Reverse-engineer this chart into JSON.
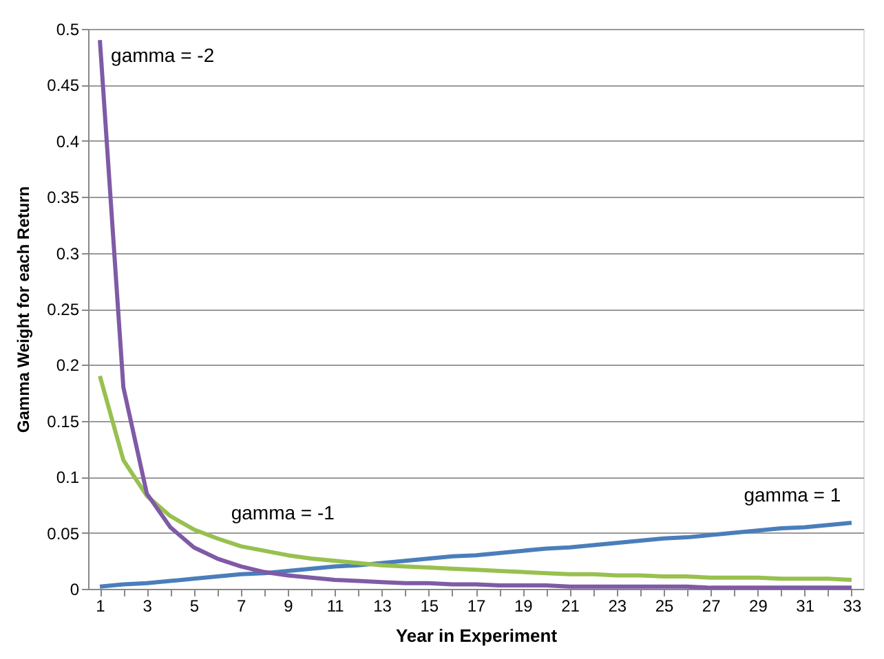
{
  "chart_data": {
    "type": "line",
    "xlabel": "Year in Experiment",
    "ylabel": "Gamma Weight for each Return",
    "x": [
      1,
      2,
      3,
      4,
      5,
      6,
      7,
      8,
      9,
      10,
      11,
      12,
      13,
      14,
      15,
      16,
      17,
      18,
      19,
      20,
      21,
      22,
      23,
      24,
      25,
      26,
      27,
      28,
      29,
      30,
      31,
      32,
      33
    ],
    "series": [
      {
        "name": "gamma = 1",
        "color": "#4a7ebb",
        "values": [
          0.002,
          0.004,
          0.005,
          0.007,
          0.009,
          0.011,
          0.013,
          0.014,
          0.016,
          0.018,
          0.02,
          0.021,
          0.023,
          0.025,
          0.027,
          0.029,
          0.03,
          0.032,
          0.034,
          0.036,
          0.037,
          0.039,
          0.041,
          0.043,
          0.045,
          0.046,
          0.048,
          0.05,
          0.052,
          0.054,
          0.055,
          0.057,
          0.059
        ]
      },
      {
        "name": "gamma = -1",
        "color": "#98c04f",
        "values": [
          0.19,
          0.115,
          0.083,
          0.065,
          0.053,
          0.045,
          0.038,
          0.034,
          0.03,
          0.027,
          0.025,
          0.023,
          0.021,
          0.02,
          0.019,
          0.018,
          0.017,
          0.016,
          0.015,
          0.014,
          0.013,
          0.013,
          0.012,
          0.012,
          0.011,
          0.011,
          0.01,
          0.01,
          0.01,
          0.009,
          0.009,
          0.009,
          0.008
        ]
      },
      {
        "name": "gamma = -2",
        "color": "#7f5aa6",
        "values": [
          0.49,
          0.18,
          0.085,
          0.055,
          0.037,
          0.027,
          0.02,
          0.015,
          0.012,
          0.01,
          0.008,
          0.007,
          0.006,
          0.005,
          0.005,
          0.004,
          0.004,
          0.003,
          0.003,
          0.003,
          0.002,
          0.002,
          0.002,
          0.002,
          0.002,
          0.002,
          0.001,
          0.001,
          0.001,
          0.001,
          0.001,
          0.001,
          0.001
        ]
      }
    ],
    "xlim": [
      0.5,
      33.5
    ],
    "xticks": [
      1,
      {
        "value": 2,
        "label": null
      },
      3,
      {
        "value": 4,
        "label": null
      },
      5,
      {
        "value": 6,
        "label": null
      },
      7,
      {
        "value": 8,
        "label": null
      },
      9,
      {
        "value": 10,
        "label": null
      },
      11,
      {
        "value": 12,
        "label": null
      },
      13,
      {
        "value": 14,
        "label": null
      },
      15,
      {
        "value": 16,
        "label": null
      },
      17,
      {
        "value": 18,
        "label": null
      },
      19,
      {
        "value": 20,
        "label": null
      },
      21,
      {
        "value": 22,
        "label": null
      },
      23,
      {
        "value": 24,
        "label": null
      },
      25,
      {
        "value": 26,
        "label": null
      },
      27,
      {
        "value": 28,
        "label": null
      },
      29,
      {
        "value": 30,
        "label": null
      },
      31,
      {
        "value": 32,
        "label": null
      },
      33
    ],
    "ylim": [
      0,
      0.5
    ],
    "yticks": [
      0,
      0.05,
      0.1,
      0.15,
      0.2,
      0.25,
      0.3,
      0.35,
      0.4,
      0.45,
      0.5
    ],
    "grid": "y",
    "legend": false,
    "line_style": "solid",
    "marker": "none"
  }
}
